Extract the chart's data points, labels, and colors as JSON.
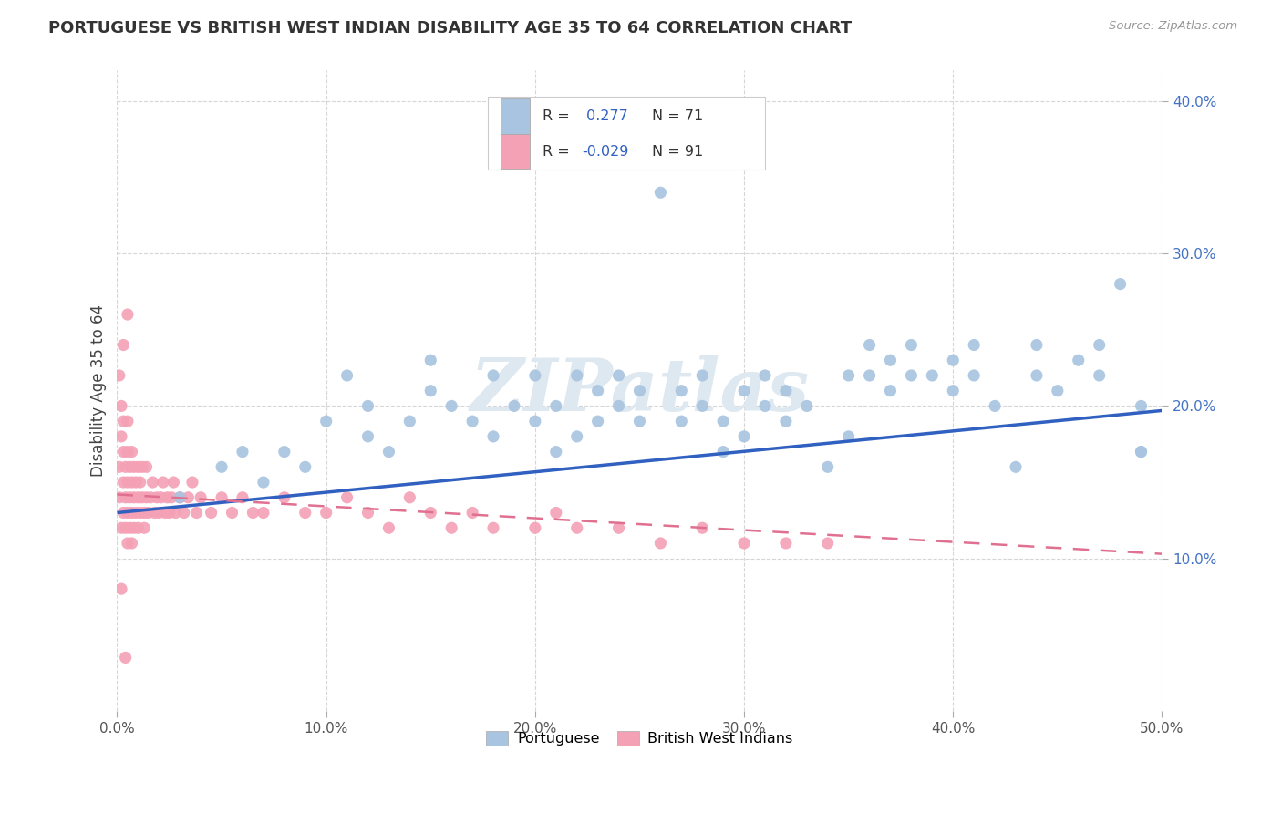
{
  "title": "PORTUGUESE VS BRITISH WEST INDIAN DISABILITY AGE 35 TO 64 CORRELATION CHART",
  "source": "Source: ZipAtlas.com",
  "ylabel": "Disability Age 35 to 64",
  "xlim": [
    0.0,
    0.5
  ],
  "ylim": [
    0.0,
    0.42
  ],
  "xticks": [
    0.0,
    0.1,
    0.2,
    0.3,
    0.4,
    0.5
  ],
  "yticks": [
    0.1,
    0.2,
    0.3,
    0.4
  ],
  "xticklabels": [
    "0.0%",
    "10.0%",
    "20.0%",
    "30.0%",
    "40.0%",
    "50.0%"
  ],
  "yticklabels": [
    "10.0%",
    "20.0%",
    "30.0%",
    "40.0%"
  ],
  "blue_R": 0.277,
  "blue_N": 71,
  "pink_R": -0.029,
  "pink_N": 91,
  "blue_color": "#a8c4e0",
  "pink_color": "#f4a0b5",
  "blue_line_color": "#3060c0",
  "pink_line_color": "#e07090",
  "background_color": "#ffffff",
  "grid_color": "#cccccc",
  "watermark_color": "#dde8f0",
  "blue_scatter_x": [
    0.03,
    0.05,
    0.06,
    0.07,
    0.08,
    0.09,
    0.1,
    0.11,
    0.12,
    0.12,
    0.13,
    0.14,
    0.15,
    0.15,
    0.16,
    0.17,
    0.18,
    0.18,
    0.19,
    0.2,
    0.2,
    0.21,
    0.21,
    0.22,
    0.22,
    0.23,
    0.23,
    0.24,
    0.24,
    0.25,
    0.25,
    0.26,
    0.27,
    0.27,
    0.28,
    0.28,
    0.29,
    0.29,
    0.3,
    0.3,
    0.31,
    0.31,
    0.32,
    0.32,
    0.33,
    0.34,
    0.35,
    0.35,
    0.36,
    0.36,
    0.37,
    0.37,
    0.38,
    0.38,
    0.39,
    0.4,
    0.4,
    0.41,
    0.41,
    0.42,
    0.43,
    0.44,
    0.44,
    0.45,
    0.46,
    0.47,
    0.47,
    0.48,
    0.49,
    0.49,
    0.49
  ],
  "blue_scatter_y": [
    0.14,
    0.16,
    0.17,
    0.15,
    0.17,
    0.16,
    0.19,
    0.22,
    0.18,
    0.2,
    0.17,
    0.19,
    0.21,
    0.23,
    0.2,
    0.19,
    0.22,
    0.18,
    0.2,
    0.19,
    0.22,
    0.17,
    0.2,
    0.18,
    0.22,
    0.19,
    0.21,
    0.2,
    0.22,
    0.19,
    0.21,
    0.34,
    0.19,
    0.21,
    0.2,
    0.22,
    0.17,
    0.19,
    0.18,
    0.21,
    0.2,
    0.22,
    0.19,
    0.21,
    0.2,
    0.16,
    0.18,
    0.22,
    0.22,
    0.24,
    0.21,
    0.23,
    0.22,
    0.24,
    0.22,
    0.21,
    0.23,
    0.22,
    0.24,
    0.2,
    0.16,
    0.24,
    0.22,
    0.21,
    0.23,
    0.22,
    0.24,
    0.28,
    0.2,
    0.17,
    0.17
  ],
  "pink_scatter_x": [
    0.001,
    0.001,
    0.002,
    0.002,
    0.002,
    0.003,
    0.003,
    0.003,
    0.003,
    0.004,
    0.004,
    0.004,
    0.005,
    0.005,
    0.005,
    0.005,
    0.005,
    0.006,
    0.006,
    0.006,
    0.007,
    0.007,
    0.007,
    0.007,
    0.008,
    0.008,
    0.008,
    0.009,
    0.009,
    0.01,
    0.01,
    0.01,
    0.011,
    0.011,
    0.012,
    0.012,
    0.013,
    0.013,
    0.014,
    0.014,
    0.015,
    0.016,
    0.017,
    0.018,
    0.019,
    0.02,
    0.021,
    0.022,
    0.023,
    0.024,
    0.025,
    0.026,
    0.027,
    0.028,
    0.03,
    0.032,
    0.034,
    0.036,
    0.038,
    0.04,
    0.045,
    0.05,
    0.055,
    0.06,
    0.065,
    0.07,
    0.08,
    0.09,
    0.1,
    0.11,
    0.12,
    0.13,
    0.14,
    0.15,
    0.16,
    0.17,
    0.18,
    0.2,
    0.21,
    0.22,
    0.24,
    0.26,
    0.28,
    0.3,
    0.32,
    0.34,
    0.001,
    0.003,
    0.005,
    0.002,
    0.004
  ],
  "pink_scatter_y": [
    0.14,
    0.16,
    0.18,
    0.12,
    0.2,
    0.15,
    0.17,
    0.13,
    0.19,
    0.14,
    0.16,
    0.12,
    0.13,
    0.15,
    0.17,
    0.11,
    0.19,
    0.14,
    0.16,
    0.12,
    0.13,
    0.15,
    0.17,
    0.11,
    0.14,
    0.16,
    0.12,
    0.13,
    0.15,
    0.14,
    0.16,
    0.12,
    0.13,
    0.15,
    0.14,
    0.16,
    0.12,
    0.13,
    0.14,
    0.16,
    0.13,
    0.14,
    0.15,
    0.13,
    0.14,
    0.13,
    0.14,
    0.15,
    0.13,
    0.14,
    0.13,
    0.14,
    0.15,
    0.13,
    0.14,
    0.13,
    0.14,
    0.15,
    0.13,
    0.14,
    0.13,
    0.14,
    0.13,
    0.14,
    0.13,
    0.13,
    0.14,
    0.13,
    0.13,
    0.14,
    0.13,
    0.12,
    0.14,
    0.13,
    0.12,
    0.13,
    0.12,
    0.12,
    0.13,
    0.12,
    0.12,
    0.11,
    0.12,
    0.11,
    0.11,
    0.11,
    0.22,
    0.24,
    0.26,
    0.08,
    0.035
  ]
}
